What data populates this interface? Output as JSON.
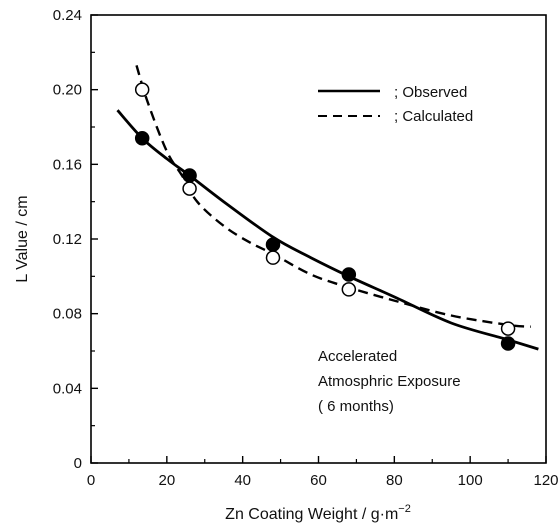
{
  "chart_data": {
    "type": "scatter",
    "xlabel": "Zn Coating Weight / g·m",
    "xlabel_sup": "−2",
    "ylabel": "L Value / cm",
    "xlim": [
      0,
      120
    ],
    "ylim": [
      0,
      0.24
    ],
    "x_ticks": [
      0,
      20,
      40,
      60,
      80,
      100,
      120
    ],
    "y_ticks": [
      0,
      0.04,
      0.08,
      0.12,
      0.16,
      0.2,
      0.24
    ],
    "y_tick_labels": [
      "0",
      "0.04",
      "0.08",
      "0.12",
      "0.16",
      "0.20",
      "0.24"
    ],
    "grid": false,
    "legend_position": "top-right",
    "series": [
      {
        "name": "Observed",
        "legend_label": "; Observed",
        "marker": "filled-circle",
        "line_style": "solid",
        "points": [
          {
            "x": 13.5,
            "y": 0.174
          },
          {
            "x": 26,
            "y": 0.154
          },
          {
            "x": 48,
            "y": 0.117
          },
          {
            "x": 68,
            "y": 0.101
          },
          {
            "x": 110,
            "y": 0.064
          }
        ],
        "curve": [
          [
            7,
            0.189
          ],
          [
            13.5,
            0.174
          ],
          [
            20,
            0.163
          ],
          [
            26,
            0.154
          ],
          [
            35,
            0.14
          ],
          [
            48,
            0.121
          ],
          [
            58,
            0.11
          ],
          [
            68,
            0.1
          ],
          [
            80,
            0.089
          ],
          [
            95,
            0.075
          ],
          [
            110,
            0.066
          ],
          [
            118,
            0.061
          ]
        ]
      },
      {
        "name": "Calculated",
        "legend_label": "; Calculated",
        "marker": "open-circle",
        "line_style": "dashed",
        "points": [
          {
            "x": 13.5,
            "y": 0.2
          },
          {
            "x": 26,
            "y": 0.147
          },
          {
            "x": 48,
            "y": 0.11
          },
          {
            "x": 68,
            "y": 0.093
          },
          {
            "x": 110,
            "y": 0.072
          }
        ],
        "curve": [
          [
            12,
            0.213
          ],
          [
            15,
            0.193
          ],
          [
            20,
            0.167
          ],
          [
            24,
            0.154
          ],
          [
            28,
            0.14
          ],
          [
            35,
            0.127
          ],
          [
            42,
            0.118
          ],
          [
            48,
            0.112
          ],
          [
            58,
            0.101
          ],
          [
            68,
            0.094
          ],
          [
            80,
            0.087
          ],
          [
            95,
            0.079
          ],
          [
            110,
            0.074
          ],
          [
            116,
            0.073
          ]
        ]
      }
    ],
    "annotation": [
      "Accelerated",
      "Atmosphric Exposure",
      "( 6 months)"
    ]
  }
}
